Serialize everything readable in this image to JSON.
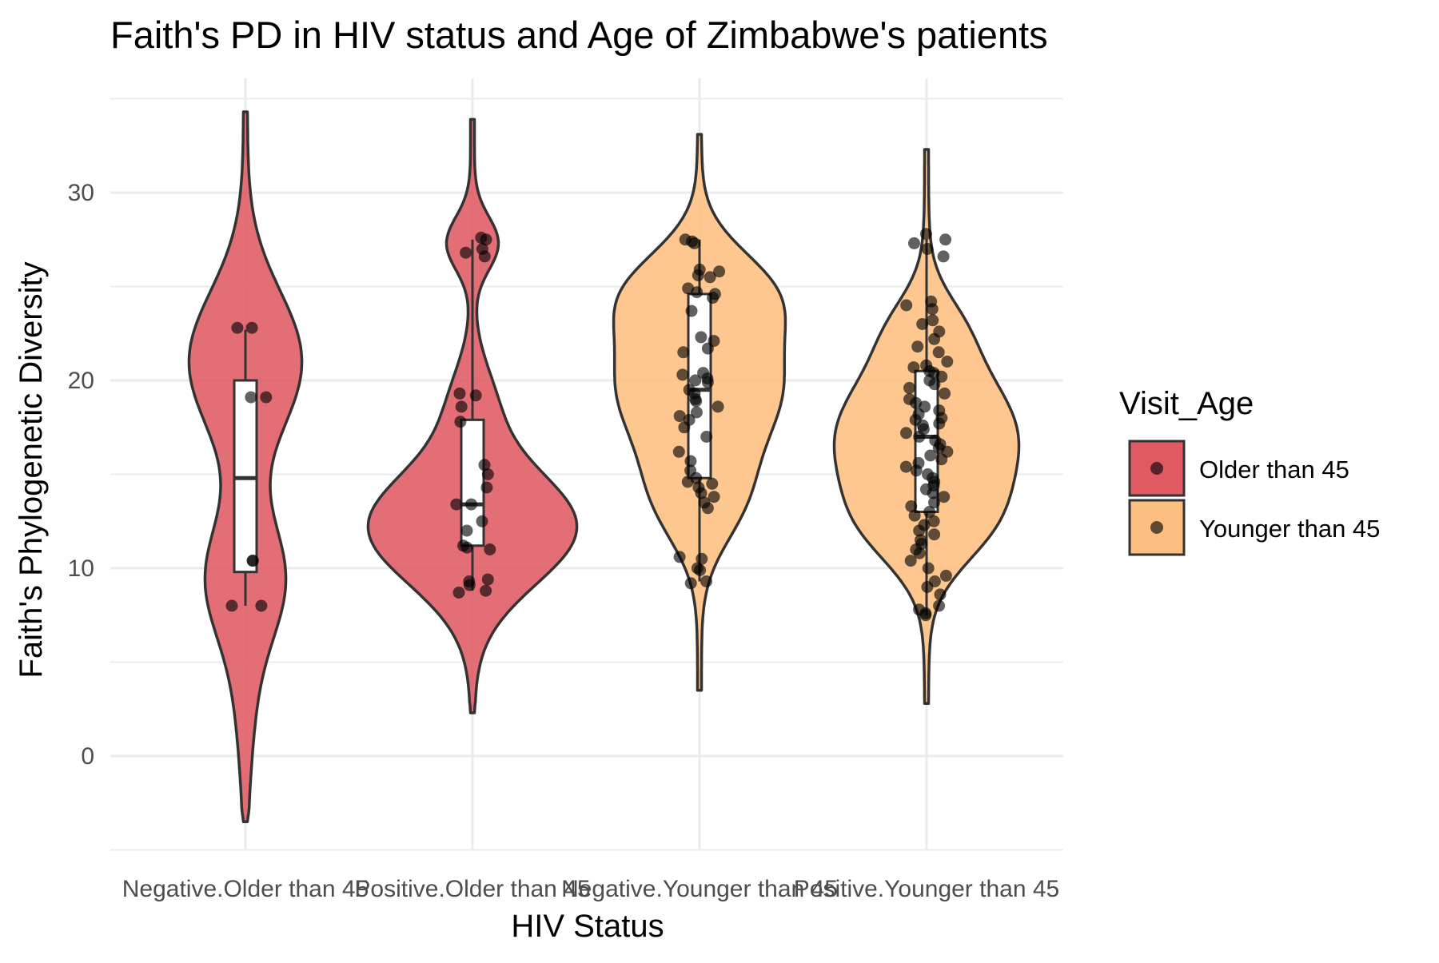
{
  "chart_data": {
    "type": "violin",
    "title": "Faith's PD in HIV status and Age of Zimbabwe's patients",
    "xlabel": "HIV Status",
    "ylabel": "Faith's Phylogenetic Diversity",
    "ylim": [
      -5,
      35
    ],
    "yticks": [
      0,
      10,
      20,
      30
    ],
    "grid": true,
    "legend": {
      "title": "Visit_Age",
      "position": "right",
      "entries": [
        {
          "label": "Older than 45",
          "color": "#e05a63"
        },
        {
          "label": "Younger than 45",
          "color": "#fdbf80"
        }
      ]
    },
    "categories": [
      "Negative.Older than 45",
      "Positive.Older than 45",
      "Negative.Younger than 45",
      "Positive.Younger than 45"
    ],
    "groups": [
      {
        "category": "Negative.Older than 45",
        "fill": "Older than 45",
        "box": {
          "min": 8.0,
          "q1": 9.8,
          "median": 14.8,
          "q3": 20.0,
          "max": 22.7
        },
        "violin_range": [
          -3.5,
          34.3
        ],
        "points": [
          22.8,
          22.8,
          19.1,
          19.1,
          10.4,
          10.4,
          8.0,
          8.0
        ]
      },
      {
        "category": "Positive.Older than 45",
        "fill": "Older than 45",
        "box": {
          "min": 8.8,
          "q1": 11.2,
          "median": 13.4,
          "q3": 17.9,
          "max": 27.5
        },
        "violin_range": [
          2.3,
          33.9
        ],
        "points": [
          27.6,
          27.5,
          27.0,
          26.8,
          26.6,
          19.3,
          19.2,
          18.6,
          17.8,
          15.5,
          15.0,
          14.3,
          13.4,
          13.4,
          12.5,
          12.0,
          11.2,
          11.1,
          11.0,
          9.4,
          9.3,
          9.1,
          8.8,
          8.7
        ]
      },
      {
        "category": "Negative.Younger than 45",
        "fill": "Younger than 45",
        "box": {
          "min": 9.3,
          "q1": 14.8,
          "median": 19.5,
          "q3": 24.6,
          "max": 27.5
        },
        "violin_range": [
          3.5,
          33.1
        ],
        "points": [
          27.5,
          27.4,
          27.3,
          25.9,
          25.8,
          25.6,
          25.5,
          24.9,
          24.7,
          24.6,
          24.4,
          23.7,
          22.3,
          22.1,
          21.7,
          21.5,
          20.4,
          20.3,
          20.1,
          20.0,
          19.9,
          19.5,
          19.3,
          19.0,
          18.9,
          18.6,
          18.3,
          18.1,
          17.9,
          17.5,
          17.0,
          16.2,
          15.7,
          15.2,
          14.8,
          14.6,
          14.5,
          14.3,
          14.0,
          13.8,
          13.5,
          13.2,
          10.6,
          10.5,
          10.0,
          9.9,
          9.3,
          9.2
        ]
      },
      {
        "category": "Positive.Younger than 45",
        "fill": "Younger than 45",
        "box": {
          "min": 7.5,
          "q1": 13.0,
          "median": 17.0,
          "q3": 20.5,
          "max": 27.5
        },
        "violin_range": [
          2.8,
          32.3
        ],
        "points": [
          27.8,
          27.5,
          27.3,
          27.0,
          26.6,
          24.2,
          24.0,
          23.8,
          23.2,
          23.0,
          22.6,
          22.2,
          21.8,
          21.5,
          21.0,
          20.8,
          20.7,
          20.5,
          20.4,
          20.2,
          20.0,
          19.8,
          19.6,
          19.3,
          19.0,
          18.8,
          18.6,
          18.4,
          18.2,
          18.0,
          17.9,
          17.7,
          17.6,
          17.4,
          17.2,
          17.0,
          16.8,
          16.6,
          16.4,
          16.2,
          16.0,
          15.8,
          15.6,
          15.4,
          15.2,
          15.0,
          14.8,
          14.6,
          14.4,
          14.2,
          14.0,
          13.8,
          13.5,
          13.3,
          13.0,
          12.8,
          12.5,
          12.3,
          12.0,
          11.8,
          11.5,
          11.3,
          11.0,
          10.8,
          10.4,
          10.0,
          9.6,
          9.3,
          9.0,
          8.6,
          8.0,
          7.8,
          7.6,
          7.5
        ]
      }
    ]
  }
}
